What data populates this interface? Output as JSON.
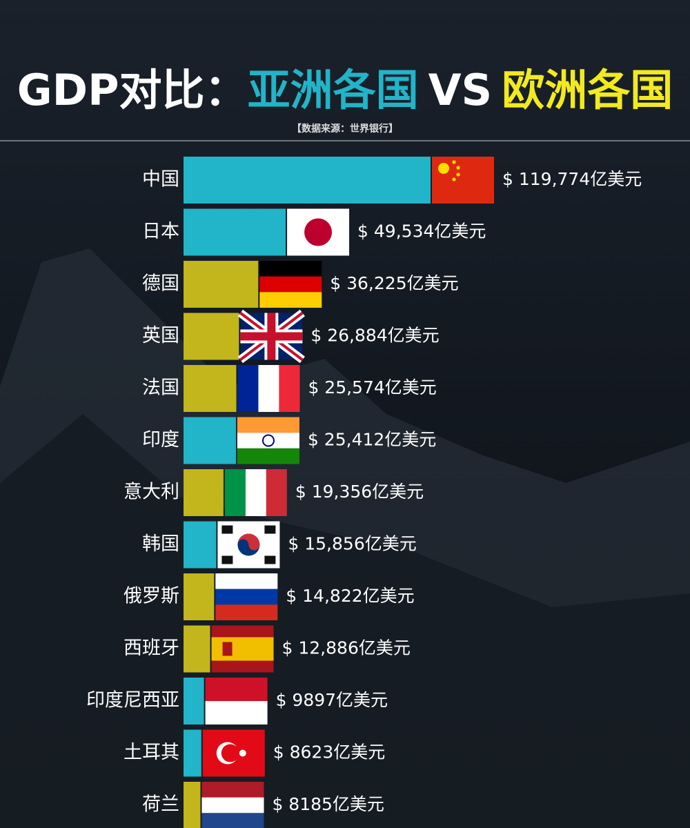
{
  "chart_data": {
    "type": "hbar",
    "title": [
      "GDP对比：",
      "亚洲各国",
      "VS",
      "欧洲各国"
    ],
    "subtitle": "【数据来源：世界银行】",
    "categories": [
      "中国",
      "日本",
      "德国",
      "英国",
      "法国",
      "印度",
      "意大利",
      "韩国",
      "俄罗斯",
      "西班牙",
      "印度尼西亚",
      "土耳其",
      "荷兰"
    ],
    "values": [
      119774,
      49534,
      36225,
      26884,
      25574,
      25412,
      19356,
      15856,
      14822,
      12886,
      9897,
      8623,
      8185
    ],
    "value_labels": [
      "$ 119,774亿美元",
      "$ 49,534亿美元",
      "$ 36,225亿美元",
      "$ 26,884亿美元",
      "$ 25,574亿美元",
      "$ 25,412亿美元",
      "$ 19,356亿美元",
      "$ 15,856亿美元",
      "$ 14,822亿美元",
      "$ 12,886亿美元",
      "$ 9897亿美元",
      "$ 8623亿美元",
      "$ 8185亿美元"
    ],
    "bar_colors": [
      "#22b4c8",
      "#22b4c8",
      "#c2b61c",
      "#c2b61c",
      "#c2b61c",
      "#22b4c8",
      "#c2b61c",
      "#22b4c8",
      "#c2b61c",
      "#c2b61c",
      "#22b4c8",
      "#22b4c8",
      "#c2b61c"
    ],
    "title_colors": [
      "#ffffff",
      "#22b4c8",
      "#ffffff",
      "#f2ea1e"
    ],
    "xlim": [
      0,
      120000
    ]
  }
}
